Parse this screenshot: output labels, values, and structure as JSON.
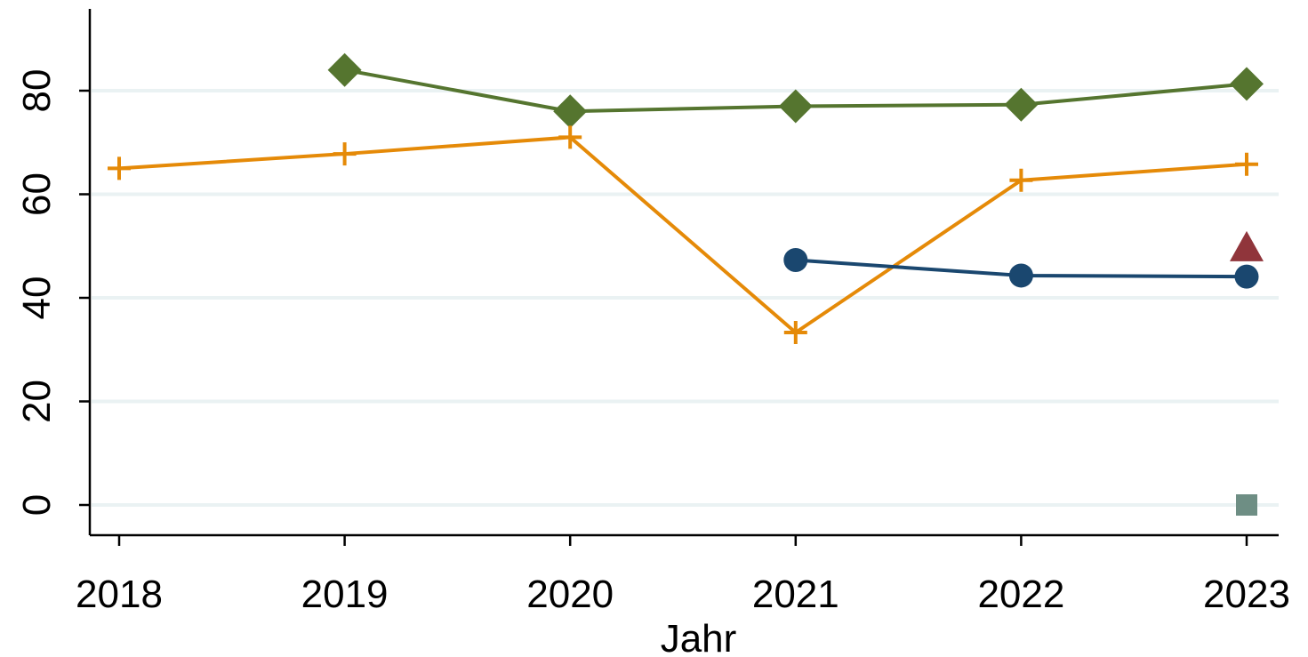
{
  "chart_data": {
    "type": "line",
    "title": "",
    "xlabel": "Jahr",
    "ylabel": "",
    "x": [
      2018,
      2019,
      2020,
      2021,
      2022,
      2023
    ],
    "x_tick_labels": [
      "2018",
      "2019",
      "2020",
      "2021",
      "2022",
      "2023"
    ],
    "xlim": [
      2017.99,
      2023.25
    ],
    "ylim": [
      -6,
      95
    ],
    "y_ticks": [
      0,
      20,
      40,
      60,
      80
    ],
    "y_tick_labels": [
      "0",
      "20",
      "40",
      "60",
      "80"
    ],
    "grid": "horizontal",
    "legend": "none",
    "series": [
      {
        "marker": "diamond",
        "color": "#55752f",
        "x": [
          2019,
          2020,
          2021,
          2022,
          2023
        ],
        "values": [
          84.0,
          76.0,
          77.0,
          77.3,
          81.3
        ]
      },
      {
        "marker": "plus",
        "color": "#e58a08",
        "x": [
          2018,
          2019,
          2020,
          2021,
          2022,
          2023
        ],
        "values": [
          65.0,
          67.8,
          71.0,
          33.3,
          62.7,
          65.8
        ]
      },
      {
        "marker": "circle",
        "color": "#1a476f",
        "x": [
          2021,
          2022,
          2023
        ],
        "values": [
          47.3,
          44.3,
          44.1
        ]
      },
      {
        "marker": "triangle",
        "color": "#90353b",
        "x": [
          2023
        ],
        "values": [
          49.3
        ]
      },
      {
        "marker": "square",
        "color": "#6e8e84",
        "x": [
          2023
        ],
        "values": [
          0.0
        ]
      }
    ]
  }
}
